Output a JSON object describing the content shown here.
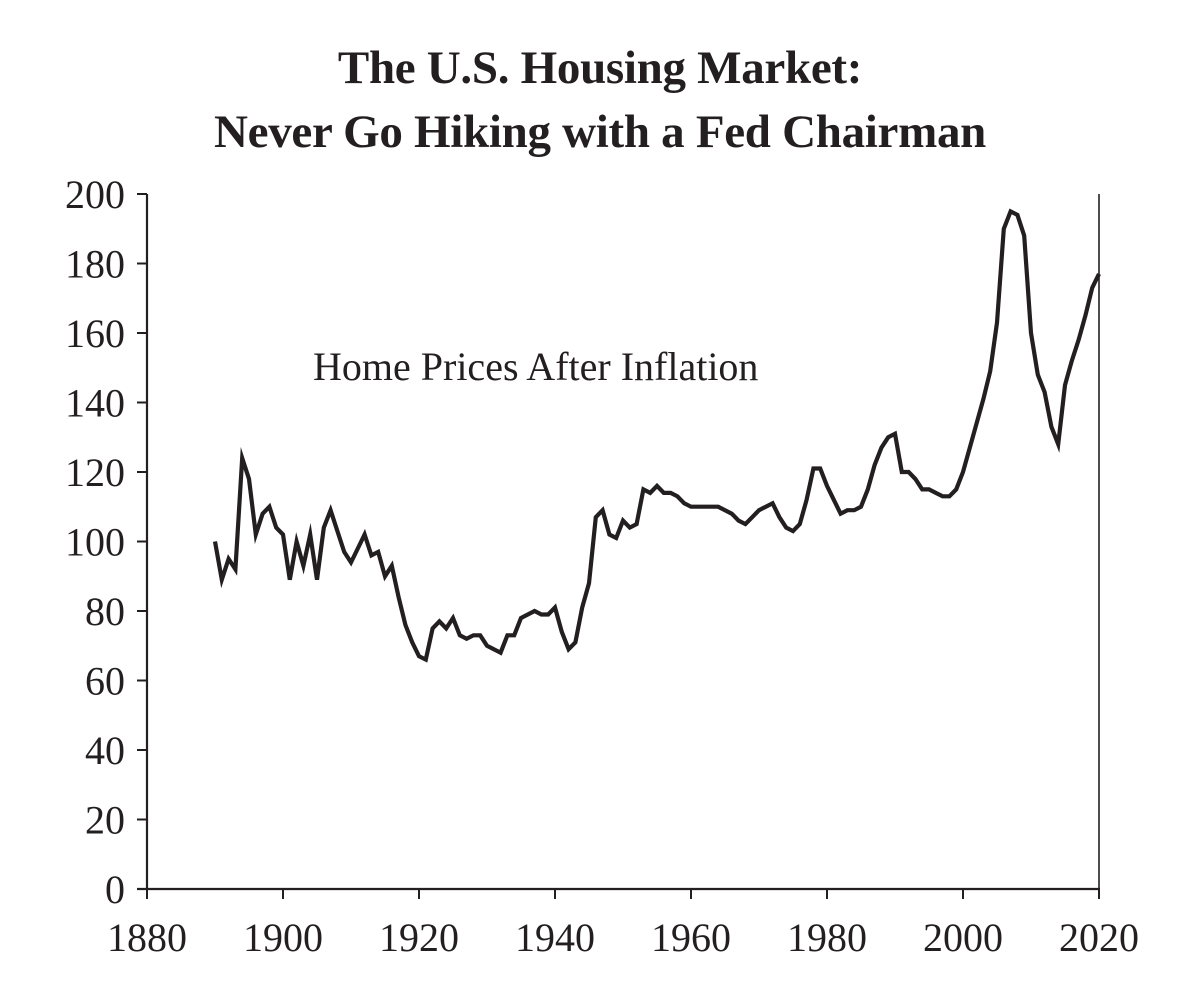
{
  "chart_data": {
    "type": "line",
    "title": "The U.S. Housing Market:",
    "subtitle": "Never Go Hiking with a Fed Chairman",
    "xlabel": "",
    "ylabel": "",
    "xlim": [
      1880,
      2020
    ],
    "ylim": [
      0,
      200
    ],
    "grid": false,
    "legend": "none",
    "x_ticks": [
      1880,
      1900,
      1920,
      1940,
      1960,
      1980,
      2000,
      2020
    ],
    "y_ticks": [
      0,
      20,
      40,
      60,
      80,
      100,
      120,
      140,
      160,
      180,
      200
    ],
    "annotations": [
      {
        "text": "Home Prices After Inflation",
        "x": 1905,
        "y": 150
      }
    ],
    "series": [
      {
        "name": "Home Prices After Inflation",
        "color": "#231f20",
        "x": [
          1890,
          1891,
          1892,
          1893,
          1894,
          1895,
          1896,
          1897,
          1898,
          1899,
          1900,
          1901,
          1902,
          1903,
          1904,
          1905,
          1906,
          1907,
          1908,
          1909,
          1910,
          1911,
          1912,
          1913,
          1914,
          1915,
          1916,
          1917,
          1918,
          1919,
          1920,
          1921,
          1922,
          1923,
          1924,
          1925,
          1926,
          1927,
          1928,
          1929,
          1930,
          1931,
          1932,
          1933,
          1934,
          1935,
          1936,
          1937,
          1938,
          1939,
          1940,
          1941,
          1942,
          1943,
          1944,
          1945,
          1946,
          1947,
          1948,
          1949,
          1950,
          1951,
          1952,
          1953,
          1954,
          1955,
          1956,
          1957,
          1958,
          1959,
          1960,
          1961,
          1962,
          1963,
          1964,
          1965,
          1966,
          1967,
          1968,
          1969,
          1970,
          1971,
          1972,
          1973,
          1974,
          1975,
          1976,
          1977,
          1978,
          1979,
          1980,
          1981,
          1982,
          1983,
          1984,
          1985,
          1986,
          1987,
          1988,
          1989,
          1990,
          1991,
          1992,
          1993,
          1994,
          1995,
          1996,
          1997,
          1998,
          1999,
          2000,
          2001,
          2002,
          2003,
          2004,
          2005,
          2006,
          2007,
          2008,
          2009,
          2010,
          2011,
          2012,
          2013,
          2014,
          2015,
          2016,
          2017,
          2018,
          2019,
          2020
        ],
        "values": [
          100,
          89,
          95,
          92,
          124,
          118,
          102,
          108,
          110,
          104,
          102,
          89,
          100,
          93,
          102,
          89,
          104,
          109,
          103,
          97,
          94,
          98,
          102,
          96,
          97,
          90,
          93,
          84,
          76,
          71,
          67,
          66,
          75,
          77,
          75,
          78,
          73,
          72,
          73,
          73,
          70,
          69,
          68,
          73,
          73,
          78,
          79,
          80,
          79,
          79,
          81,
          74,
          69,
          71,
          81,
          88,
          107,
          109,
          102,
          101,
          106,
          104,
          105,
          115,
          114,
          116,
          114,
          114,
          113,
          111,
          110,
          110,
          110,
          110,
          110,
          109,
          108,
          106,
          105,
          107,
          109,
          110,
          111,
          107,
          104,
          103,
          105,
          112,
          121,
          121,
          116,
          112,
          108,
          109,
          109,
          110,
          115,
          122,
          127,
          130,
          131,
          120,
          120,
          118,
          115,
          115,
          114,
          113,
          113,
          115,
          120,
          127,
          134,
          141,
          149,
          163,
          190,
          195,
          194,
          188,
          160,
          148,
          143,
          133,
          128,
          145,
          152,
          158,
          165,
          173,
          177
        ]
      }
    ]
  }
}
